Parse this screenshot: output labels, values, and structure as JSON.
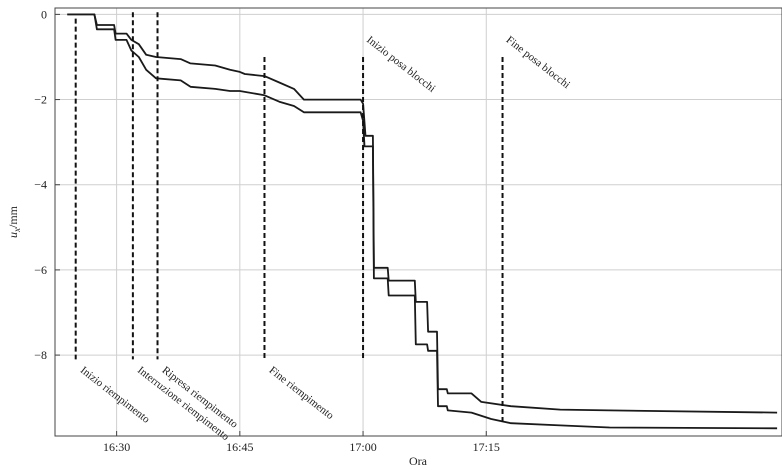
{
  "chart_data": {
    "type": "line",
    "xlabel": "Ora",
    "ylabel": "u_x/mm",
    "ylabel_main": "u",
    "ylabel_sub": "x",
    "ylabel_unit": "/mm",
    "xlim": [
      -0.125,
      1.35
    ],
    "ylim": [
      -9.9,
      0.15
    ],
    "grid": true,
    "xticks": [
      {
        "value": 0,
        "label": "16:30"
      },
      {
        "value": 0.25,
        "label": "16:45"
      },
      {
        "value": 0.5,
        "label": "17:00"
      },
      {
        "value": 0.75,
        "label": "17:15"
      }
    ],
    "yticks": [
      {
        "value": 0,
        "label": "0"
      },
      {
        "value": -2,
        "label": "−2"
      },
      {
        "value": -4,
        "label": "−4"
      },
      {
        "value": -6,
        "label": "−6"
      },
      {
        "value": -8,
        "label": "−8"
      }
    ],
    "series": [
      {
        "points": [
          [
            -0.1,
            0
          ],
          [
            -0.045,
            0
          ],
          [
            -0.04,
            -0.25
          ],
          [
            -0.005,
            -0.25
          ],
          [
            -0.002,
            -0.45
          ],
          [
            0.02,
            -0.45
          ],
          [
            0.03,
            -0.6
          ],
          [
            0.045,
            -0.7
          ],
          [
            0.06,
            -0.95
          ],
          [
            0.08,
            -1.0
          ],
          [
            0.13,
            -1.05
          ],
          [
            0.15,
            -1.15
          ],
          [
            0.2,
            -1.2
          ],
          [
            0.23,
            -1.3
          ],
          [
            0.25,
            -1.35
          ],
          [
            0.26,
            -1.4
          ],
          [
            0.3,
            -1.45
          ],
          [
            0.33,
            -1.6
          ],
          [
            0.36,
            -1.75
          ],
          [
            0.38,
            -2.0
          ],
          [
            0.495,
            -2.0
          ],
          [
            0.5,
            -2.1
          ],
          [
            0.505,
            -2.85
          ],
          [
            0.52,
            -2.85
          ],
          [
            0.522,
            -5.95
          ],
          [
            0.55,
            -5.95
          ],
          [
            0.552,
            -6.25
          ],
          [
            0.605,
            -6.25
          ],
          [
            0.607,
            -6.75
          ],
          [
            0.63,
            -6.75
          ],
          [
            0.632,
            -7.45
          ],
          [
            0.65,
            -7.45
          ],
          [
            0.652,
            -8.8
          ],
          [
            0.67,
            -8.8
          ],
          [
            0.672,
            -8.9
          ],
          [
            0.72,
            -8.9
          ],
          [
            0.74,
            -9.1
          ],
          [
            0.8,
            -9.2
          ],
          [
            0.9,
            -9.28
          ],
          [
            1.0,
            -9.3
          ],
          [
            1.34,
            -9.35
          ]
        ]
      },
      {
        "points": [
          [
            -0.1,
            0
          ],
          [
            -0.045,
            0
          ],
          [
            -0.04,
            -0.35
          ],
          [
            -0.005,
            -0.35
          ],
          [
            -0.002,
            -0.6
          ],
          [
            0.02,
            -0.6
          ],
          [
            0.03,
            -0.85
          ],
          [
            0.045,
            -1.0
          ],
          [
            0.06,
            -1.3
          ],
          [
            0.08,
            -1.5
          ],
          [
            0.13,
            -1.55
          ],
          [
            0.15,
            -1.7
          ],
          [
            0.2,
            -1.75
          ],
          [
            0.23,
            -1.8
          ],
          [
            0.25,
            -1.8
          ],
          [
            0.3,
            -1.9
          ],
          [
            0.33,
            -2.05
          ],
          [
            0.36,
            -2.15
          ],
          [
            0.38,
            -2.3
          ],
          [
            0.495,
            -2.3
          ],
          [
            0.5,
            -2.5
          ],
          [
            0.503,
            -3.1
          ],
          [
            0.52,
            -3.1
          ],
          [
            0.522,
            -6.2
          ],
          [
            0.55,
            -6.2
          ],
          [
            0.552,
            -6.6
          ],
          [
            0.605,
            -6.6
          ],
          [
            0.607,
            -7.75
          ],
          [
            0.63,
            -7.75
          ],
          [
            0.632,
            -7.9
          ],
          [
            0.65,
            -7.9
          ],
          [
            0.652,
            -9.2
          ],
          [
            0.67,
            -9.2
          ],
          [
            0.672,
            -9.3
          ],
          [
            0.72,
            -9.35
          ],
          [
            0.76,
            -9.5
          ],
          [
            0.8,
            -9.6
          ],
          [
            0.9,
            -9.65
          ],
          [
            1.0,
            -9.7
          ],
          [
            1.34,
            -9.72
          ]
        ]
      }
    ],
    "annotations": [
      {
        "x": -0.083,
        "label": "Inizio riempimento",
        "top": -0.1,
        "bottom": -8.1,
        "label_pos": "bottom"
      },
      {
        "x": 0.033,
        "label": "Interruzione riempimento",
        "top": 0.05,
        "bottom": -8.1,
        "label_pos": "bottom"
      },
      {
        "x": 0.083,
        "label": "Ripresa riempimento",
        "top": 0.05,
        "bottom": -8.1,
        "label_pos": "bottom"
      },
      {
        "x": 0.3,
        "label": "Fine riempimento",
        "top": -1.0,
        "bottom": -8.1,
        "label_pos": "bottom"
      },
      {
        "x": 0.5,
        "label": "Inizio posa blocchi",
        "top": -1.0,
        "bottom": -8.1,
        "label_pos": "top"
      },
      {
        "x": 0.783,
        "label": "Fine posa blocchi",
        "top": -1.0,
        "bottom": -9.6,
        "label_pos": "top"
      }
    ]
  }
}
